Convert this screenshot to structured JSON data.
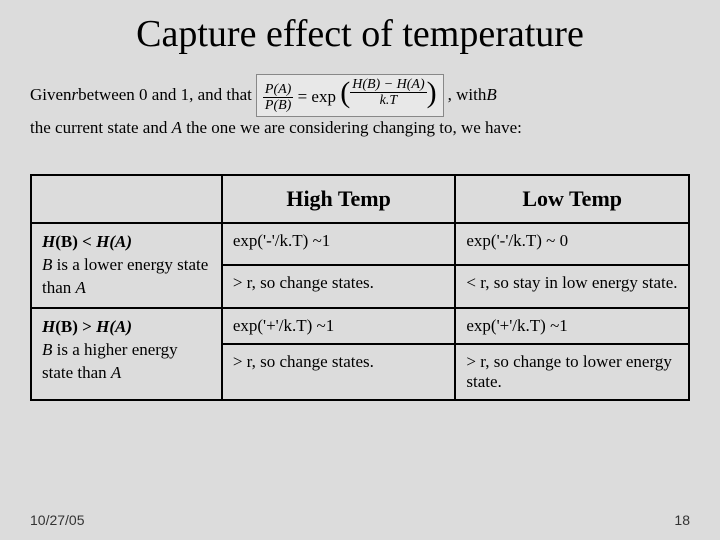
{
  "title": "Capture effect of temperature",
  "intro": {
    "pre": "Given ",
    "r": "r",
    "mid1": " between 0 and 1, and that ",
    "post1": " ,  with  ",
    "B": "B",
    "line2a": "the current state and ",
    "A": "A",
    "line2b": " the one we are considering changing to, we have:"
  },
  "formula": {
    "lhs_num": "P(A)",
    "lhs_den": "P(B)",
    "eq": " = exp",
    "rhs_num": "H(B) − H(A)",
    "rhs_den": "k.T"
  },
  "table": {
    "headers": {
      "col0": "",
      "col1": "High Temp",
      "col2": "Low Temp"
    },
    "row1": {
      "label_strong_pre": "H",
      "label_strong_B": "(B)",
      "label_cmp": " < ",
      "label_strong_A": "H(A)",
      "label_line2_pre": "B",
      "label_line2": " is a lower energy state than ",
      "label_line2_post": "A",
      "ht_a": "exp('-'/k.T) ~1",
      "lt_a": "exp('-'/k.T) ~ 0",
      "ht_b": "> r, so change states.",
      "lt_b": "< r, so stay in low energy state."
    },
    "row2": {
      "label_strong_pre": "H",
      "label_strong_B": "(B)",
      "label_cmp": " > ",
      "label_strong_A": "H(A)",
      "label_line2_pre": "B",
      "label_line2": " is a higher energy state than ",
      "label_line2_post": "A",
      "ht_a": "exp('+'/k.T) ~1",
      "lt_a": "exp('+'/k.T) ~1",
      "ht_b": "> r, so change states.",
      "lt_b": "> r, so change to lower energy state."
    }
  },
  "footer": {
    "date": "10/27/05",
    "page": "18"
  },
  "style": {
    "background": "#dcdcdc",
    "border_color": "#000000",
    "title_fontsize": 38,
    "body_fontsize": 17,
    "header_fontsize": 22,
    "footer_fontsize": 14
  }
}
